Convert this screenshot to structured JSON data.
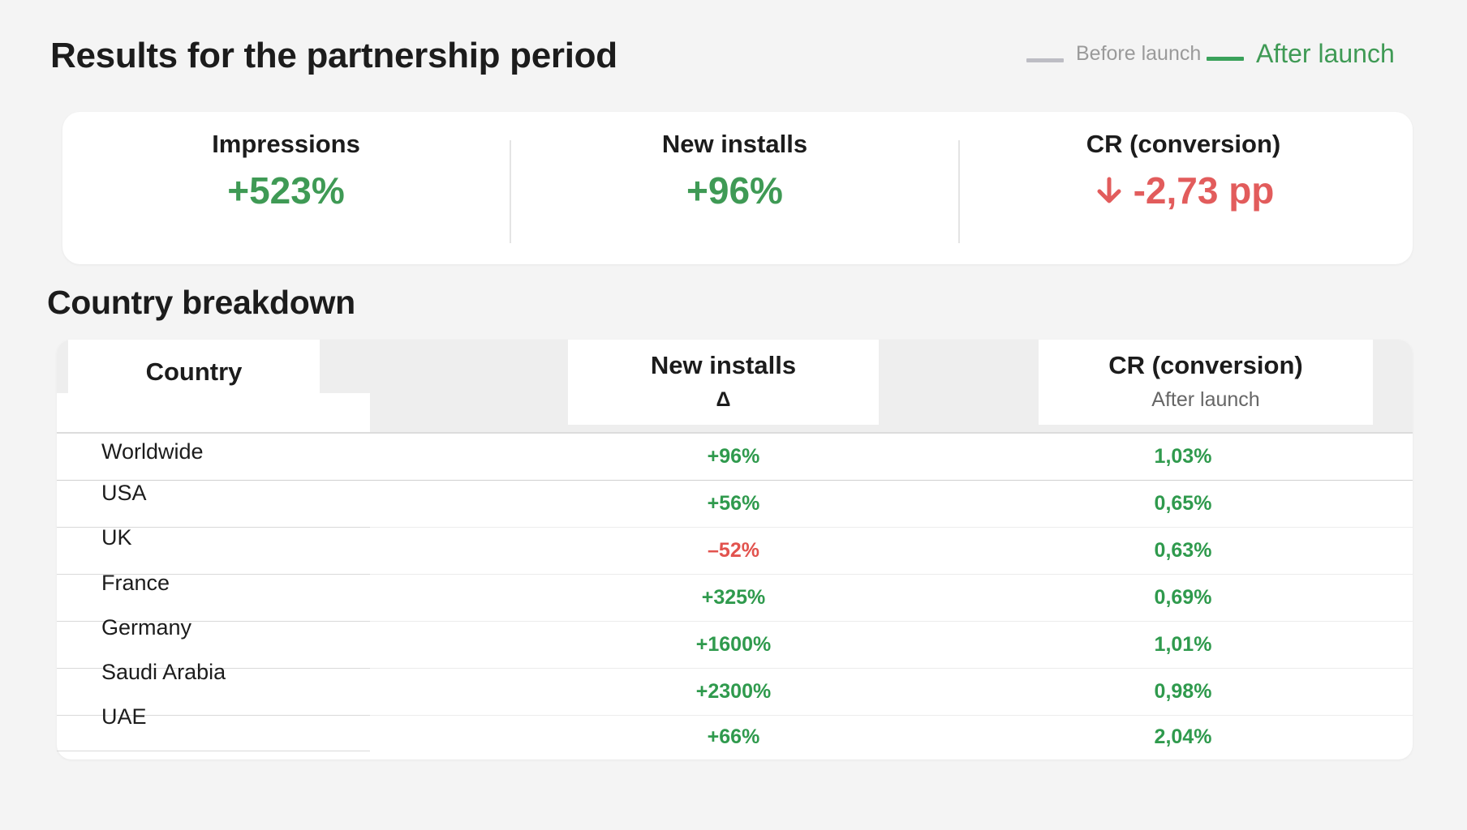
{
  "page": {
    "title": "Results for the partnership period",
    "legend": [
      {
        "label": "Before launch",
        "color": "#bdbdc4"
      },
      {
        "label": "After launch",
        "color": "#3aa15a"
      }
    ]
  },
  "kpis": [
    {
      "label": "Impressions",
      "value": "+523%",
      "trend": "up",
      "color": "#3f9a55"
    },
    {
      "label": "New installs",
      "value": "+96%",
      "trend": "up",
      "color": "#3f9a55"
    },
    {
      "label": "CR (conversion)",
      "value": "-2,73 pp",
      "trend": "down",
      "icon": "arrow-down-icon",
      "color": "#e25c5c"
    }
  ],
  "breakdown": {
    "title": "Country breakdown",
    "headers": {
      "country": "Country",
      "installs": "New installs",
      "installs_sub": "Δ",
      "cr": "CR (conversion)",
      "cr_sub": "After launch"
    },
    "rows": [
      {
        "country": "Worldwide",
        "installs": "+96%",
        "cr": "1,03%"
      },
      {
        "country": "USA",
        "installs": "+56%",
        "cr": "0,65%"
      },
      {
        "country": "UK",
        "installs": "–52%",
        "cr": "0,63%"
      },
      {
        "country": "France",
        "installs": "+325%",
        "cr": "0,69%"
      },
      {
        "country": "Germany",
        "installs": "+1600%",
        "cr": "1,01%"
      },
      {
        "country": "Saudi Arabia",
        "installs": "+2300%",
        "cr": "0,98%"
      },
      {
        "country": "UAE",
        "installs": "+66%",
        "cr": "2,04%"
      }
    ]
  }
}
